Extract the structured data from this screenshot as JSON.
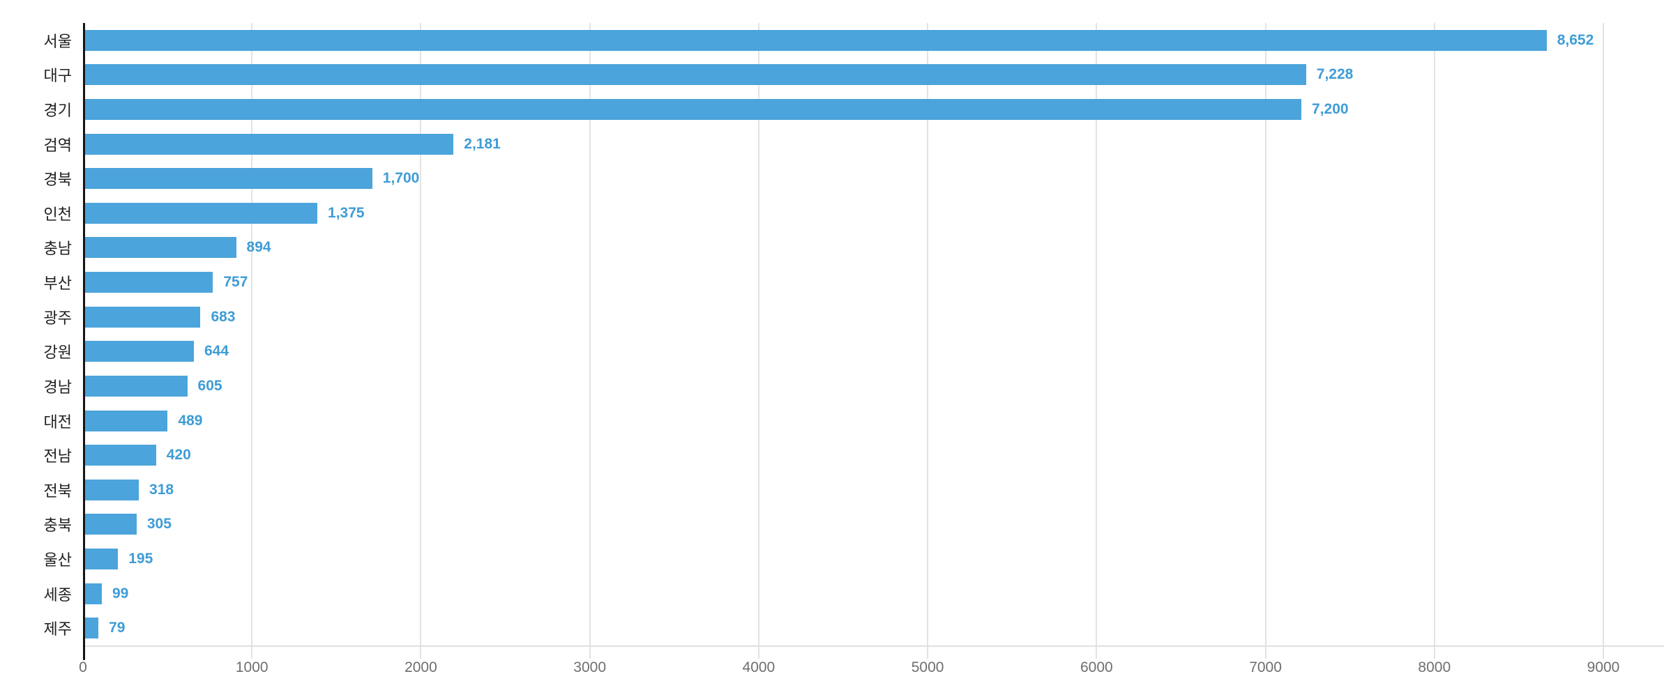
{
  "chart_data": {
    "type": "bar",
    "orientation": "horizontal",
    "title": "",
    "xlabel": "",
    "ylabel": "",
    "categories": [
      "서울",
      "대구",
      "경기",
      "검역",
      "경북",
      "인천",
      "충남",
      "부산",
      "광주",
      "강원",
      "경남",
      "대전",
      "전남",
      "전북",
      "충북",
      "울산",
      "세종",
      "제주"
    ],
    "values": [
      8652,
      7228,
      7200,
      2181,
      1700,
      1375,
      894,
      757,
      683,
      644,
      605,
      489,
      420,
      318,
      305,
      195,
      99,
      79
    ],
    "value_labels": [
      "8,652",
      "7,228",
      "7,200",
      "2,181",
      "1,700",
      "1,375",
      "894",
      "757",
      "683",
      "644",
      "605",
      "489",
      "420",
      "318",
      "305",
      "195",
      "99",
      "79"
    ],
    "xlim": [
      0,
      9000
    ],
    "x_ticks": [
      0,
      1000,
      2000,
      3000,
      4000,
      5000,
      6000,
      7000,
      8000,
      9000
    ],
    "grid": "vertical-only",
    "legend": "none",
    "colors": {
      "bar": "#4ba4db",
      "value_label": "#3e9cd6",
      "category_label": "#1f1f1f",
      "tick_label": "#6e6e6e",
      "gridline": "#e3e3e3",
      "baseline": "#e0e0e0",
      "axis_line": "#151515",
      "background": "#ffffff"
    }
  }
}
